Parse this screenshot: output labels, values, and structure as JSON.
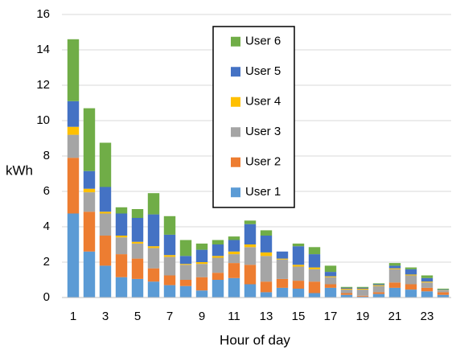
{
  "chart_data": {
    "type": "stacked_bar",
    "ylabel": "kWh",
    "xlabel": "Hour of day",
    "categories": [
      "1",
      null,
      "3",
      null,
      "5",
      null,
      "7",
      null,
      "9",
      null,
      "11",
      null,
      "13",
      null,
      "15",
      null,
      "17",
      null,
      "19",
      null,
      "21",
      null,
      "23",
      null
    ],
    "series": [
      {
        "name": "User 1",
        "color": "#5b9bd5",
        "values": [
          4.75,
          2.6,
          1.8,
          1.15,
          1.05,
          0.9,
          0.7,
          0.65,
          0.4,
          1.0,
          1.1,
          0.75,
          0.3,
          0.55,
          0.5,
          0.25,
          0.55,
          0.15,
          0.05,
          0.2,
          0.55,
          0.45,
          0.35,
          0.15
        ]
      },
      {
        "name": "User 2",
        "color": "#ed7d31",
        "values": [
          3.15,
          2.25,
          1.7,
          1.3,
          1.15,
          0.75,
          0.55,
          0.35,
          0.75,
          0.4,
          0.85,
          1.1,
          0.6,
          0.5,
          0.45,
          0.65,
          0.2,
          0.1,
          0.05,
          0.1,
          0.3,
          0.3,
          0.2,
          0.15
        ]
      },
      {
        "name": "User 3",
        "color": "#a5a5a5",
        "values": [
          1.3,
          1.1,
          1.25,
          0.95,
          0.85,
          1.15,
          1.05,
          0.85,
          0.75,
          0.85,
          0.5,
          1.0,
          1.45,
          1.1,
          0.8,
          0.7,
          0.4,
          0.2,
          0.35,
          0.35,
          0.75,
          0.5,
          0.3,
          0.1
        ]
      },
      {
        "name": "User 4",
        "color": "#ffc000",
        "values": [
          0.45,
          0.2,
          0.1,
          0.1,
          0.1,
          0.1,
          0.1,
          0.05,
          0.1,
          0.1,
          0.15,
          0.15,
          0.2,
          0.05,
          0.1,
          0.1,
          0.05,
          0.05,
          0.05,
          0.05,
          0.05,
          0.05,
          0.05,
          0.02
        ]
      },
      {
        "name": "User 5",
        "color": "#4472c4",
        "values": [
          1.45,
          1.0,
          1.4,
          1.25,
          1.35,
          1.8,
          1.15,
          0.45,
          0.7,
          0.65,
          0.65,
          1.15,
          0.95,
          0.4,
          1.05,
          0.75,
          0.25,
          0.05,
          0.05,
          0.05,
          0.15,
          0.3,
          0.2,
          0.03
        ]
      },
      {
        "name": "User 6",
        "color": "#70ad47",
        "values": [
          3.5,
          3.55,
          2.5,
          0.35,
          0.5,
          1.2,
          1.05,
          0.9,
          0.35,
          0.25,
          0.2,
          0.2,
          0.3,
          0,
          0.15,
          0.4,
          0.35,
          0.05,
          0.05,
          0.05,
          0.15,
          0.1,
          0.15,
          0.05
        ]
      }
    ],
    "ylim": [
      0,
      16
    ],
    "yticks": [
      0,
      2,
      4,
      6,
      8,
      10,
      12,
      14,
      16
    ],
    "grid": true
  }
}
